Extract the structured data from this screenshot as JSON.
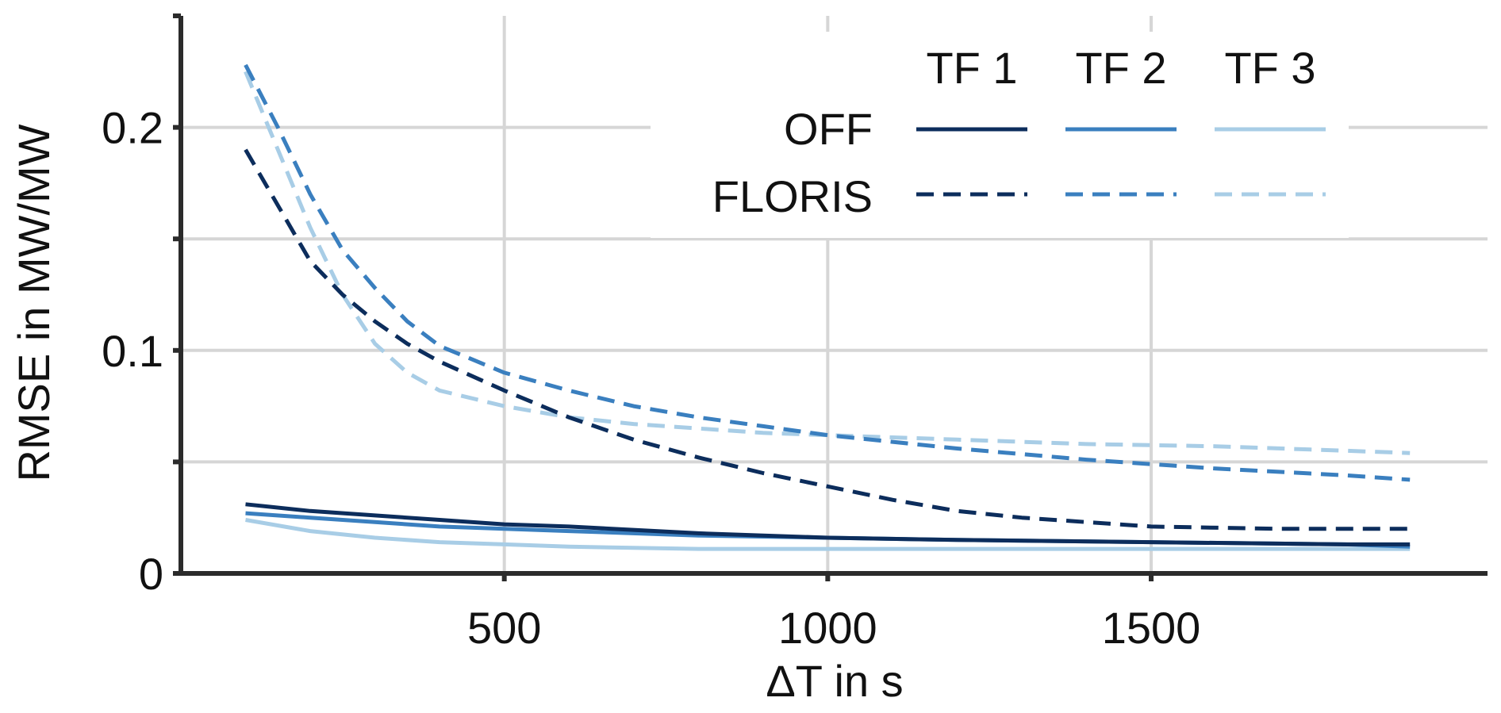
{
  "chart_data": {
    "type": "line",
    "xlabel": "ΔT in s",
    "ylabel": "RMSE in MW/MW",
    "xlim": [
      0,
      2020
    ],
    "ylim": [
      0,
      0.25
    ],
    "xticks": [
      500,
      1000,
      1500
    ],
    "yticks": [
      0,
      0.05,
      0.1,
      0.15,
      0.2
    ],
    "ytick_labels": [
      "0",
      "",
      "0.1",
      "",
      "0.2"
    ],
    "grid": true,
    "legend": {
      "position": "top-right",
      "columns": [
        "TF 1",
        "TF 2",
        "TF 3"
      ],
      "rows": [
        "OFF",
        "FLORIS"
      ]
    },
    "colors": {
      "TF 1": "#0c2d5c",
      "TF 2": "#3a7fbf",
      "TF 3": "#a8cde6"
    },
    "series": [
      {
        "group": "OFF",
        "turbine": "TF 1",
        "style": "solid",
        "x": [
          100,
          200,
          300,
          400,
          500,
          600,
          800,
          1000,
          1200,
          1500,
          1800,
          1900
        ],
        "y": [
          0.031,
          0.028,
          0.026,
          0.024,
          0.022,
          0.021,
          0.018,
          0.016,
          0.015,
          0.014,
          0.013,
          0.013
        ]
      },
      {
        "group": "OFF",
        "turbine": "TF 2",
        "style": "solid",
        "x": [
          100,
          200,
          300,
          400,
          500,
          600,
          800,
          1000,
          1200,
          1500,
          1800,
          1900
        ],
        "y": [
          0.027,
          0.025,
          0.023,
          0.021,
          0.02,
          0.019,
          0.017,
          0.016,
          0.015,
          0.014,
          0.013,
          0.012
        ]
      },
      {
        "group": "OFF",
        "turbine": "TF 3",
        "style": "solid",
        "x": [
          100,
          200,
          300,
          400,
          500,
          600,
          800,
          1000,
          1200,
          1500,
          1800,
          1900
        ],
        "y": [
          0.024,
          0.019,
          0.016,
          0.014,
          0.013,
          0.012,
          0.011,
          0.011,
          0.011,
          0.011,
          0.011,
          0.011
        ]
      },
      {
        "group": "FLORIS",
        "turbine": "TF 1",
        "style": "dashed",
        "x": [
          100,
          150,
          200,
          250,
          300,
          350,
          400,
          500,
          600,
          700,
          800,
          900,
          1000,
          1100,
          1200,
          1300,
          1400,
          1500,
          1700,
          1900
        ],
        "y": [
          0.19,
          0.165,
          0.14,
          0.125,
          0.113,
          0.103,
          0.095,
          0.082,
          0.07,
          0.06,
          0.052,
          0.045,
          0.039,
          0.033,
          0.028,
          0.025,
          0.023,
          0.021,
          0.02,
          0.02
        ]
      },
      {
        "group": "FLORIS",
        "turbine": "TF 2",
        "style": "dashed",
        "x": [
          100,
          150,
          200,
          250,
          300,
          350,
          400,
          500,
          600,
          700,
          800,
          900,
          1000,
          1200,
          1400,
          1600,
          1800,
          1900
        ],
        "y": [
          0.228,
          0.2,
          0.17,
          0.145,
          0.128,
          0.113,
          0.102,
          0.09,
          0.082,
          0.075,
          0.07,
          0.066,
          0.062,
          0.056,
          0.051,
          0.047,
          0.044,
          0.042
        ]
      },
      {
        "group": "FLORIS",
        "turbine": "TF 3",
        "style": "dashed",
        "x": [
          100,
          150,
          200,
          250,
          300,
          350,
          400,
          500,
          600,
          700,
          800,
          900,
          1000,
          1200,
          1400,
          1600,
          1800,
          1900
        ],
        "y": [
          0.225,
          0.19,
          0.155,
          0.125,
          0.103,
          0.09,
          0.082,
          0.075,
          0.07,
          0.067,
          0.065,
          0.063,
          0.062,
          0.06,
          0.058,
          0.057,
          0.055,
          0.054
        ]
      }
    ]
  }
}
